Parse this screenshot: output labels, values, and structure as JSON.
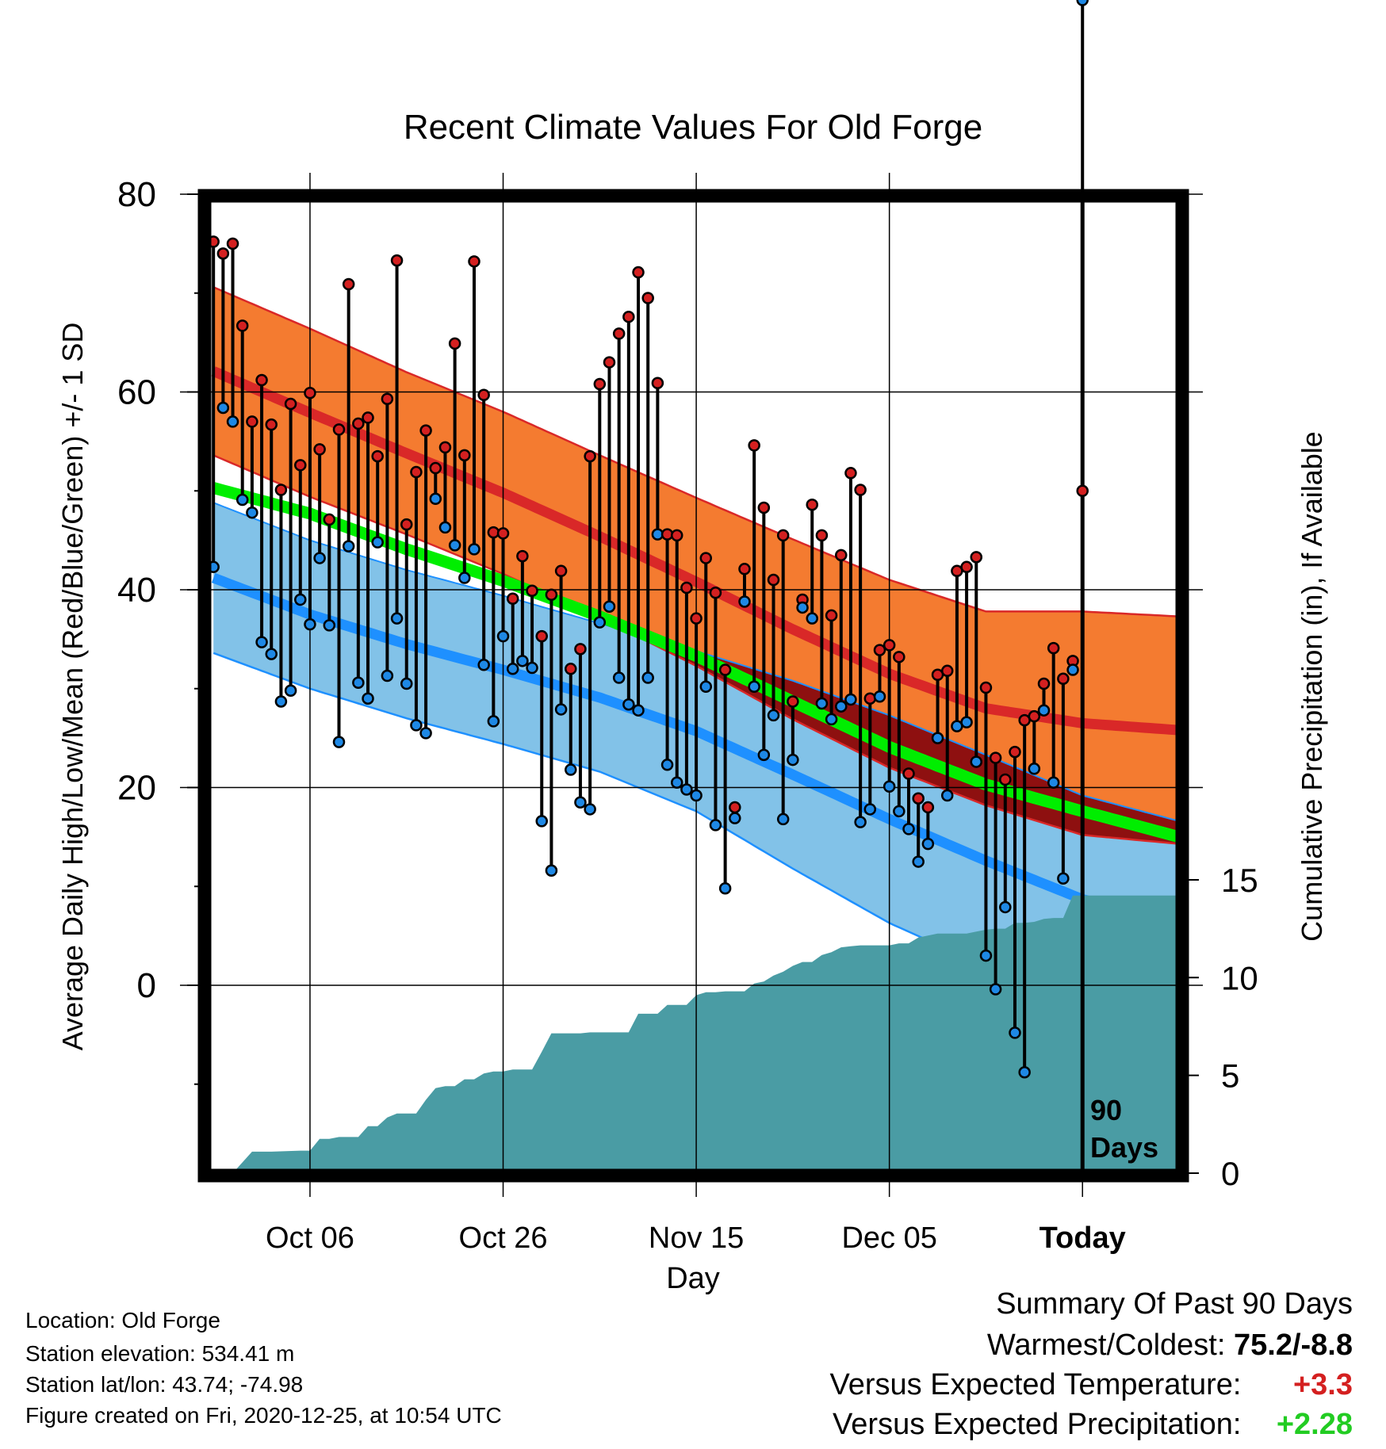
{
  "chart_data": {
    "type": "line",
    "title": "Recent Climate Values For Old Forge",
    "xlabel": "Day",
    "ylabel": "Average Daily High/Low/Mean (Red/Blue/Green) +/- 1 SD",
    "ylabel_right": "Cumulative Precipitation (in), If Available",
    "x_ticks": [
      {
        "label": "Oct 06",
        "day": 11
      },
      {
        "label": "Oct 26",
        "day": 31
      },
      {
        "label": "Nov 15",
        "day": 51
      },
      {
        "label": "Dec 05",
        "day": 71
      },
      {
        "label": "Today",
        "day": 91
      }
    ],
    "xlim": [
      0,
      101
    ],
    "ylim": [
      -18,
      80
    ],
    "y_ticks": [
      "80",
      "60",
      "40",
      "20",
      "0"
    ],
    "y_tick_values": [
      80,
      60,
      40,
      20,
      0
    ],
    "precip_ticks": [
      "15",
      "10",
      "5",
      "0"
    ],
    "precip_tick_values": [
      15,
      10,
      5,
      0
    ],
    "precip_ylim": [
      0,
      15
    ],
    "grid": true,
    "today_marker_day": 91,
    "period_label": [
      "90",
      "Days"
    ],
    "colors": {
      "high_band": "#f47b30",
      "high_mean": "#d92828",
      "low_band": "#82c2e8",
      "low_mean": "#1e90ff",
      "low_edge": "#1e90ff",
      "overlap": "#8e1010",
      "mean": "#00ee00",
      "precip": "#4a9ca4",
      "high_dot": "#d42020",
      "low_dot": "#1e88e5"
    },
    "normal_high": {
      "days": [
        1,
        11,
        21,
        31,
        41,
        51,
        61,
        71,
        81,
        91,
        101
      ],
      "mean": [
        62.1,
        57.9,
        53.8,
        49.8,
        45.4,
        40.8,
        36.0,
        31.5,
        28.0,
        26.5,
        25.8
      ],
      "sd": [
        8.5,
        8.5,
        8.2,
        8.2,
        8.2,
        8.5,
        9.1,
        9.5,
        9.8,
        11.3,
        11.5
      ]
    },
    "normal_low": {
      "days": [
        1,
        11,
        21,
        31,
        41,
        51,
        61,
        71,
        81,
        91,
        101
      ],
      "mean": [
        41.2,
        37.5,
        34.5,
        31.9,
        29.1,
        25.7,
        21.3,
        16.8,
        12.6,
        8.7,
        6.3
      ],
      "sd": [
        7.6,
        7.5,
        7.5,
        7.5,
        7.5,
        8.1,
        9.5,
        10.5,
        10.7,
        10.5,
        10.3
      ]
    },
    "normal_mean": {
      "days": [
        1,
        11,
        21,
        31,
        41,
        51,
        61,
        71,
        81,
        91,
        101
      ],
      "values": [
        50.3,
        47.7,
        44.1,
        40.9,
        37.3,
        33.3,
        28.7,
        24.1,
        20.3,
        17.6,
        15.0
      ]
    },
    "series": [
      {
        "name": "High",
        "values": [
          75.2,
          74.0,
          75.0,
          66.7,
          57.0,
          61.2,
          56.7,
          50.1,
          58.8,
          52.6,
          59.9,
          54.2,
          47.1,
          56.2,
          70.9,
          56.8,
          57.4,
          53.5,
          59.3,
          73.3,
          46.6,
          51.9,
          56.1,
          52.3,
          54.4,
          64.9,
          53.6,
          73.2,
          59.7,
          45.8,
          45.7,
          39.1,
          43.4,
          39.9,
          35.3,
          39.5,
          41.9,
          32.0,
          34.0,
          53.5,
          60.8,
          63.0,
          65.9,
          67.6,
          72.1,
          69.5,
          60.9,
          45.6,
          45.5,
          40.2,
          37.1,
          43.2,
          39.7,
          31.9,
          18.0,
          42.1,
          54.6,
          48.3,
          41.0,
          45.5,
          28.7,
          39.0,
          48.6,
          45.5,
          37.4,
          43.5,
          51.8,
          50.1,
          29.0,
          33.9,
          34.4,
          33.2,
          21.4,
          18.9,
          18.0,
          31.4,
          31.8,
          41.9,
          42.3,
          43.3,
          30.1,
          23.0,
          20.8,
          23.6,
          26.8,
          27.2,
          30.5,
          34.1,
          31.0,
          32.8,
          50.0
        ]
      },
      {
        "name": "Low",
        "values": [
          42.3,
          58.4,
          57.0,
          49.1,
          47.8,
          34.7,
          33.5,
          28.7,
          29.8,
          39.0,
          36.5,
          43.2,
          36.4,
          24.6,
          44.4,
          30.6,
          29.0,
          44.8,
          31.3,
          37.1,
          30.5,
          26.3,
          25.5,
          49.2,
          46.3,
          44.5,
          41.2,
          44.1,
          32.4,
          26.7,
          35.3,
          32.0,
          32.8,
          32.1,
          16.6,
          11.6,
          27.9,
          21.8,
          18.5,
          17.8,
          36.7,
          38.3,
          31.1,
          28.4,
          27.8,
          31.1,
          45.6,
          22.3,
          20.5,
          19.8,
          19.2,
          30.2,
          16.2,
          9.8,
          16.9,
          38.8,
          30.2,
          23.3,
          27.3,
          16.8,
          22.8,
          38.2,
          37.1,
          28.5,
          26.9,
          28.2,
          28.9,
          16.5,
          17.8,
          29.2,
          20.1,
          17.6,
          15.8,
          12.5,
          14.3,
          25.0,
          19.2,
          26.2,
          26.6,
          22.6,
          3.0,
          -0.4,
          7.9,
          -4.8,
          -8.8,
          21.9,
          27.8,
          20.5,
          10.8,
          31.9
        ]
      }
    ],
    "precip_cumulative": {
      "days": [
        0,
        3,
        5,
        6,
        7,
        10,
        11,
        12,
        13,
        14,
        15,
        16,
        17,
        18,
        19,
        20,
        21,
        22,
        23,
        24,
        25,
        26,
        27,
        28,
        29,
        30,
        31,
        32,
        33,
        34,
        35,
        36,
        37,
        38,
        39,
        40,
        41,
        42,
        43,
        44,
        45,
        46,
        47,
        48,
        49,
        50,
        51,
        52,
        53,
        54,
        55,
        56,
        57,
        58,
        59,
        60,
        61,
        62,
        63,
        64,
        65,
        66,
        67,
        68,
        69,
        70,
        71,
        72,
        73,
        74,
        75,
        76,
        77,
        78,
        79,
        80,
        81,
        82,
        83,
        84,
        85,
        86,
        87,
        88,
        89,
        90,
        91,
        100,
        101
      ],
      "values": [
        0,
        0,
        1.1,
        1.1,
        1.1,
        1.15,
        1.15,
        1.75,
        1.75,
        1.85,
        1.85,
        1.85,
        2.4,
        2.4,
        2.85,
        3.05,
        3.05,
        3.05,
        3.75,
        4.35,
        4.45,
        4.45,
        4.8,
        4.8,
        5.1,
        5.2,
        5.2,
        5.3,
        5.3,
        5.3,
        6.2,
        7.15,
        7.15,
        7.15,
        7.15,
        7.2,
        7.2,
        7.2,
        7.2,
        7.2,
        8.15,
        8.15,
        8.15,
        8.6,
        8.6,
        8.6,
        9.1,
        9.25,
        9.25,
        9.3,
        9.3,
        9.3,
        9.7,
        9.8,
        10.1,
        10.3,
        10.6,
        10.8,
        10.8,
        11.15,
        11.3,
        11.55,
        11.6,
        11.65,
        11.65,
        11.65,
        11.65,
        11.75,
        11.75,
        12.05,
        12.15,
        12.25,
        12.25,
        12.25,
        12.25,
        12.35,
        12.45,
        12.5,
        12.5,
        12.8,
        12.8,
        12.85,
        13.0,
        13.05,
        13.05,
        14.2,
        14.2,
        14.2,
        14.2
      ]
    }
  },
  "station": {
    "location": "Location: Old Forge",
    "elevation": "Station elevation: 534.41 m",
    "latlon": "Station lat/lon: 43.74; -74.98",
    "created": "Figure created on Fri, 2020-12-25, at 10:54 UTC"
  },
  "summary": {
    "heading": "Summary Of Past 90 Days",
    "warmest_label": "Warmest/Coldest:",
    "warmest_value": "75.2/-8.8",
    "temp_label": "Versus Expected Temperature:",
    "temp_value": "+3.3",
    "temp_color": "#d42020",
    "precip_label": "Versus Expected Precipitation:",
    "precip_value": "+2.28",
    "precip_color": "#22cc22"
  }
}
